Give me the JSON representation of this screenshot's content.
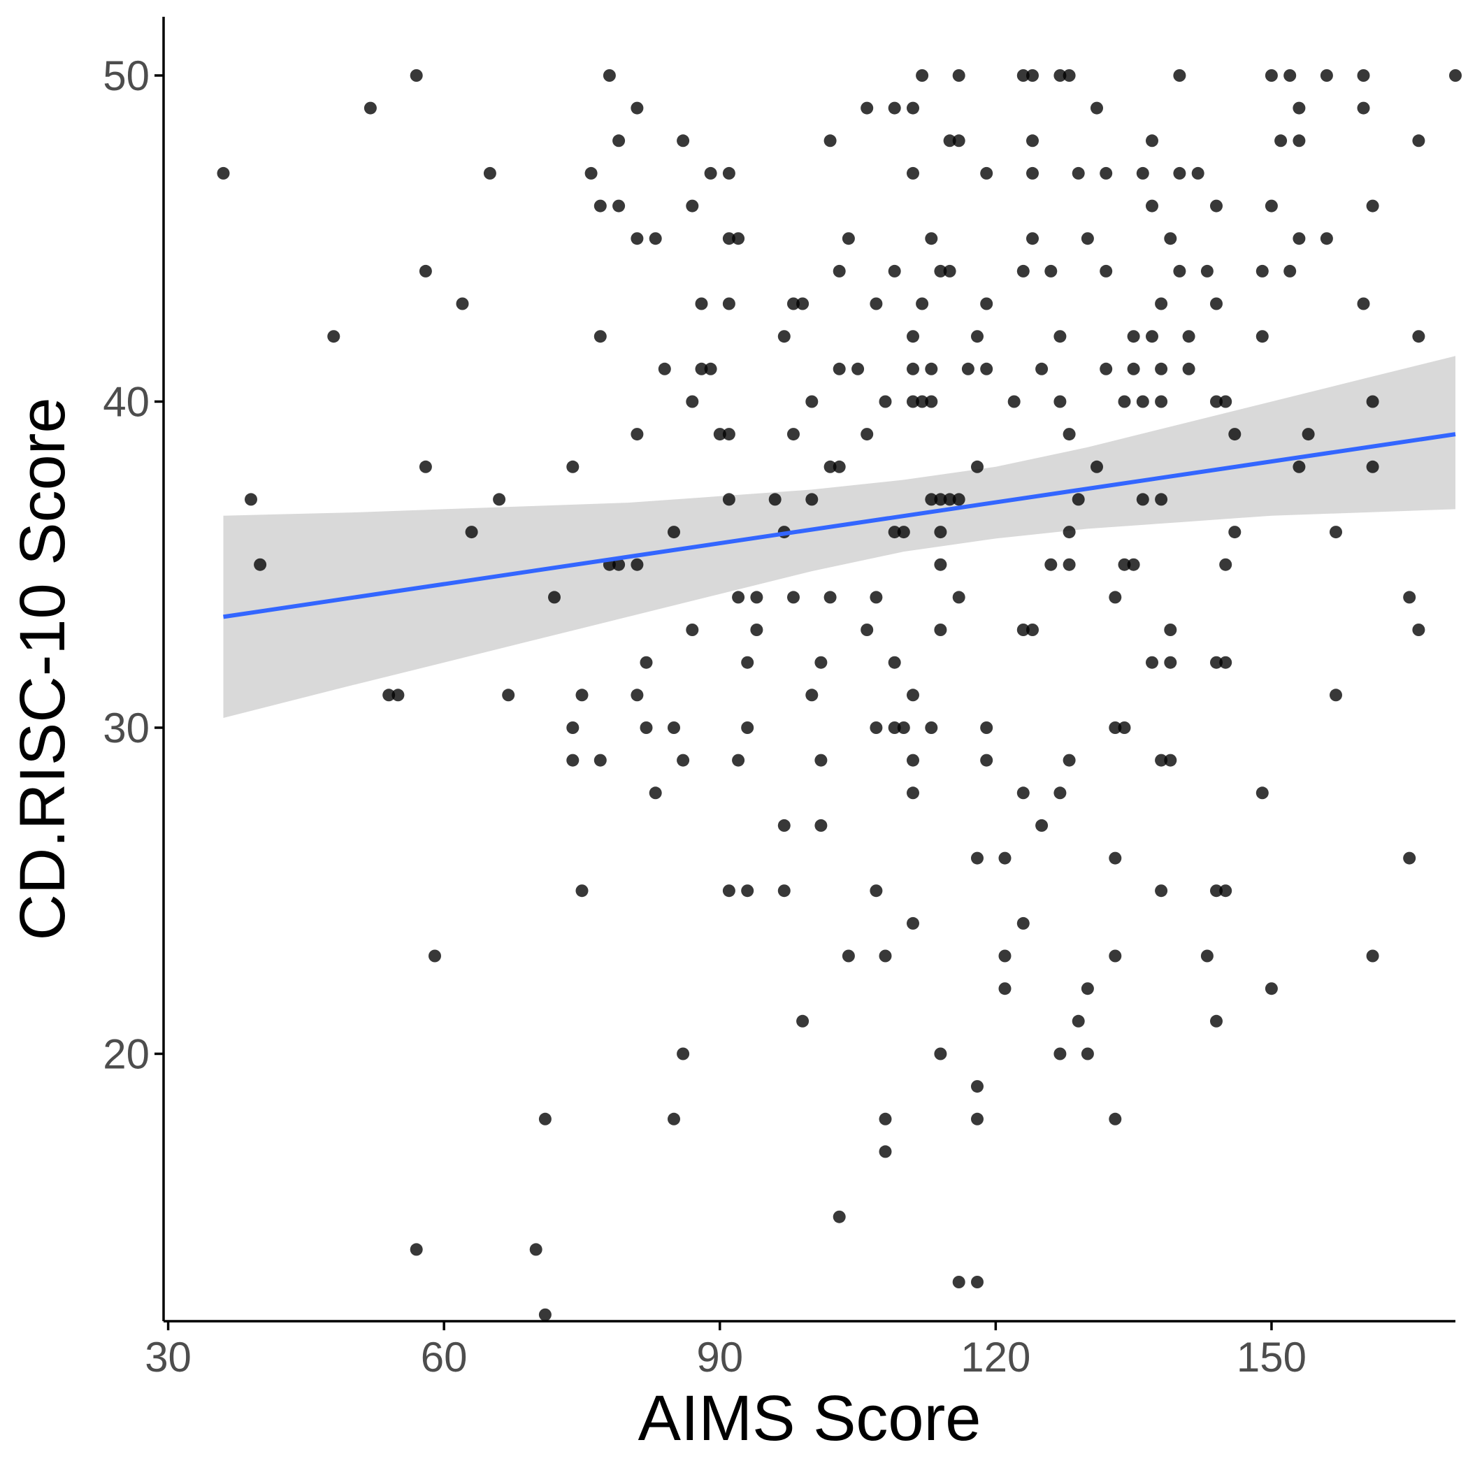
{
  "chart_data": {
    "type": "scatter",
    "title": "",
    "xlabel": "AIMS Score",
    "ylabel": "CD.RISC-10 Score",
    "xlim": [
      29.5,
      170
    ],
    "ylim": [
      11.8,
      51.8
    ],
    "x_ticks": [
      30,
      60,
      90,
      120,
      150
    ],
    "y_ticks": [
      20,
      30,
      40,
      50
    ],
    "grid": false,
    "legend": "none",
    "colors": {
      "points": "#000000",
      "fit_line": "#3366ff",
      "ci_band": "#bfbfbf",
      "tick_text": "#4d4d4d"
    },
    "points": [
      [
        36,
        47
      ],
      [
        39,
        37
      ],
      [
        40,
        35
      ],
      [
        48,
        42
      ],
      [
        52,
        49
      ],
      [
        54,
        31
      ],
      [
        55,
        31
      ],
      [
        57,
        50
      ],
      [
        57,
        14
      ],
      [
        58,
        44
      ],
      [
        58,
        38
      ],
      [
        59,
        23
      ],
      [
        62,
        43
      ],
      [
        63,
        36
      ],
      [
        65,
        47
      ],
      [
        66,
        37
      ],
      [
        67,
        31
      ],
      [
        70,
        14
      ],
      [
        71,
        18
      ],
      [
        71,
        12
      ],
      [
        72,
        34
      ],
      [
        74,
        38
      ],
      [
        74,
        30
      ],
      [
        74,
        29
      ],
      [
        75,
        31
      ],
      [
        75,
        25
      ],
      [
        76,
        47
      ],
      [
        77,
        46
      ],
      [
        77,
        42
      ],
      [
        77,
        29
      ],
      [
        78,
        50
      ],
      [
        78,
        35
      ],
      [
        79,
        48
      ],
      [
        79,
        46
      ],
      [
        79,
        35
      ],
      [
        81,
        49
      ],
      [
        81,
        45
      ],
      [
        81,
        39
      ],
      [
        81,
        35
      ],
      [
        81,
        31
      ],
      [
        82,
        32
      ],
      [
        82,
        30
      ],
      [
        83,
        45
      ],
      [
        83,
        28
      ],
      [
        84,
        41
      ],
      [
        85,
        36
      ],
      [
        85,
        30
      ],
      [
        85,
        18
      ],
      [
        86,
        48
      ],
      [
        86,
        29
      ],
      [
        86,
        20
      ],
      [
        87,
        46
      ],
      [
        87,
        40
      ],
      [
        87,
        33
      ],
      [
        88,
        43
      ],
      [
        88,
        41
      ],
      [
        89,
        47
      ],
      [
        89,
        41
      ],
      [
        90,
        39
      ],
      [
        91,
        47
      ],
      [
        91,
        45
      ],
      [
        91,
        43
      ],
      [
        91,
        39
      ],
      [
        91,
        37
      ],
      [
        91,
        25
      ],
      [
        92,
        45
      ],
      [
        92,
        34
      ],
      [
        92,
        29
      ],
      [
        93,
        32
      ],
      [
        93,
        30
      ],
      [
        93,
        25
      ],
      [
        94,
        34
      ],
      [
        94,
        33
      ],
      [
        96,
        37
      ],
      [
        97,
        42
      ],
      [
        97,
        36
      ],
      [
        97,
        27
      ],
      [
        97,
        25
      ],
      [
        98,
        43
      ],
      [
        98,
        39
      ],
      [
        98,
        34
      ],
      [
        99,
        43
      ],
      [
        99,
        21
      ],
      [
        100,
        40
      ],
      [
        100,
        37
      ],
      [
        100,
        31
      ],
      [
        101,
        32
      ],
      [
        101,
        29
      ],
      [
        101,
        27
      ],
      [
        102,
        48
      ],
      [
        102,
        38
      ],
      [
        102,
        34
      ],
      [
        103,
        44
      ],
      [
        103,
        41
      ],
      [
        103,
        38
      ],
      [
        103,
        15
      ],
      [
        104,
        45
      ],
      [
        104,
        23
      ],
      [
        105,
        41
      ],
      [
        106,
        49
      ],
      [
        106,
        39
      ],
      [
        106,
        33
      ],
      [
        107,
        43
      ],
      [
        107,
        34
      ],
      [
        107,
        30
      ],
      [
        107,
        25
      ],
      [
        108,
        40
      ],
      [
        108,
        23
      ],
      [
        108,
        18
      ],
      [
        108,
        17
      ],
      [
        109,
        49
      ],
      [
        109,
        44
      ],
      [
        109,
        36
      ],
      [
        109,
        32
      ],
      [
        109,
        30
      ],
      [
        110,
        36
      ],
      [
        110,
        30
      ],
      [
        111,
        49
      ],
      [
        111,
        47
      ],
      [
        111,
        42
      ],
      [
        111,
        41
      ],
      [
        111,
        40
      ],
      [
        111,
        31
      ],
      [
        111,
        29
      ],
      [
        111,
        28
      ],
      [
        111,
        24
      ],
      [
        112,
        50
      ],
      [
        112,
        43
      ],
      [
        112,
        40
      ],
      [
        113,
        45
      ],
      [
        113,
        41
      ],
      [
        113,
        40
      ],
      [
        113,
        37
      ],
      [
        113,
        30
      ],
      [
        114,
        44
      ],
      [
        114,
        37
      ],
      [
        114,
        36
      ],
      [
        114,
        35
      ],
      [
        114,
        33
      ],
      [
        114,
        20
      ],
      [
        115,
        48
      ],
      [
        115,
        44
      ],
      [
        115,
        37
      ],
      [
        116,
        50
      ],
      [
        116,
        48
      ],
      [
        116,
        37
      ],
      [
        116,
        34
      ],
      [
        116,
        13
      ],
      [
        117,
        41
      ],
      [
        118,
        42
      ],
      [
        118,
        38
      ],
      [
        118,
        26
      ],
      [
        118,
        19
      ],
      [
        118,
        18
      ],
      [
        118,
        13
      ],
      [
        119,
        47
      ],
      [
        119,
        43
      ],
      [
        119,
        41
      ],
      [
        119,
        30
      ],
      [
        119,
        29
      ],
      [
        121,
        26
      ],
      [
        121,
        23
      ],
      [
        121,
        22
      ],
      [
        122,
        40
      ],
      [
        123,
        50
      ],
      [
        123,
        44
      ],
      [
        123,
        33
      ],
      [
        123,
        28
      ],
      [
        123,
        24
      ],
      [
        124,
        50
      ],
      [
        124,
        48
      ],
      [
        124,
        47
      ],
      [
        124,
        45
      ],
      [
        124,
        33
      ],
      [
        125,
        41
      ],
      [
        125,
        27
      ],
      [
        126,
        44
      ],
      [
        126,
        35
      ],
      [
        127,
        50
      ],
      [
        127,
        42
      ],
      [
        127,
        40
      ],
      [
        127,
        28
      ],
      [
        127,
        20
      ],
      [
        128,
        50
      ],
      [
        128,
        39
      ],
      [
        128,
        36
      ],
      [
        128,
        35
      ],
      [
        128,
        29
      ],
      [
        129,
        47
      ],
      [
        129,
        37
      ],
      [
        129,
        21
      ],
      [
        130,
        45
      ],
      [
        130,
        22
      ],
      [
        130,
        20
      ],
      [
        131,
        49
      ],
      [
        131,
        38
      ],
      [
        132,
        47
      ],
      [
        132,
        44
      ],
      [
        132,
        41
      ],
      [
        133,
        34
      ],
      [
        133,
        30
      ],
      [
        133,
        26
      ],
      [
        133,
        23
      ],
      [
        133,
        18
      ],
      [
        134,
        40
      ],
      [
        134,
        35
      ],
      [
        134,
        30
      ],
      [
        135,
        42
      ],
      [
        135,
        41
      ],
      [
        135,
        35
      ],
      [
        136,
        47
      ],
      [
        136,
        40
      ],
      [
        136,
        37
      ],
      [
        137,
        48
      ],
      [
        137,
        46
      ],
      [
        137,
        42
      ],
      [
        137,
        32
      ],
      [
        138,
        43
      ],
      [
        138,
        41
      ],
      [
        138,
        40
      ],
      [
        138,
        37
      ],
      [
        138,
        29
      ],
      [
        138,
        25
      ],
      [
        139,
        45
      ],
      [
        139,
        33
      ],
      [
        139,
        32
      ],
      [
        139,
        29
      ],
      [
        140,
        50
      ],
      [
        140,
        47
      ],
      [
        140,
        44
      ],
      [
        141,
        42
      ],
      [
        141,
        41
      ],
      [
        142,
        47
      ],
      [
        143,
        44
      ],
      [
        143,
        23
      ],
      [
        144,
        46
      ],
      [
        144,
        43
      ],
      [
        144,
        40
      ],
      [
        144,
        32
      ],
      [
        144,
        25
      ],
      [
        144,
        21
      ],
      [
        145,
        40
      ],
      [
        145,
        35
      ],
      [
        145,
        32
      ],
      [
        145,
        25
      ],
      [
        146,
        39
      ],
      [
        146,
        36
      ],
      [
        149,
        44
      ],
      [
        149,
        42
      ],
      [
        149,
        28
      ],
      [
        150,
        50
      ],
      [
        150,
        46
      ],
      [
        150,
        22
      ],
      [
        151,
        48
      ],
      [
        152,
        50
      ],
      [
        152,
        44
      ],
      [
        153,
        49
      ],
      [
        153,
        48
      ],
      [
        153,
        45
      ],
      [
        153,
        38
      ],
      [
        154,
        39
      ],
      [
        156,
        50
      ],
      [
        156,
        45
      ],
      [
        157,
        36
      ],
      [
        157,
        31
      ],
      [
        160,
        50
      ],
      [
        160,
        49
      ],
      [
        160,
        43
      ],
      [
        161,
        46
      ],
      [
        161,
        40
      ],
      [
        161,
        38
      ],
      [
        161,
        23
      ],
      [
        165,
        34
      ],
      [
        165,
        26
      ],
      [
        166,
        48
      ],
      [
        166,
        42
      ],
      [
        166,
        33
      ],
      [
        170,
        50
      ]
    ],
    "fit": {
      "x": [
        36,
        170
      ],
      "y": [
        33.4,
        39.0
      ]
    },
    "confidence_band": {
      "x": [
        36,
        50,
        60,
        70,
        80,
        90,
        100,
        110,
        120,
        130,
        140,
        150,
        160,
        170
      ],
      "lower": [
        30.3,
        31.3,
        32.0,
        32.7,
        33.4,
        34.1,
        34.8,
        35.4,
        35.8,
        36.1,
        36.3,
        36.5,
        36.6,
        36.7
      ],
      "upper": [
        36.5,
        36.6,
        36.7,
        36.8,
        36.9,
        37.1,
        37.3,
        37.6,
        38.0,
        38.6,
        39.3,
        40.0,
        40.7,
        41.4
      ]
    }
  }
}
